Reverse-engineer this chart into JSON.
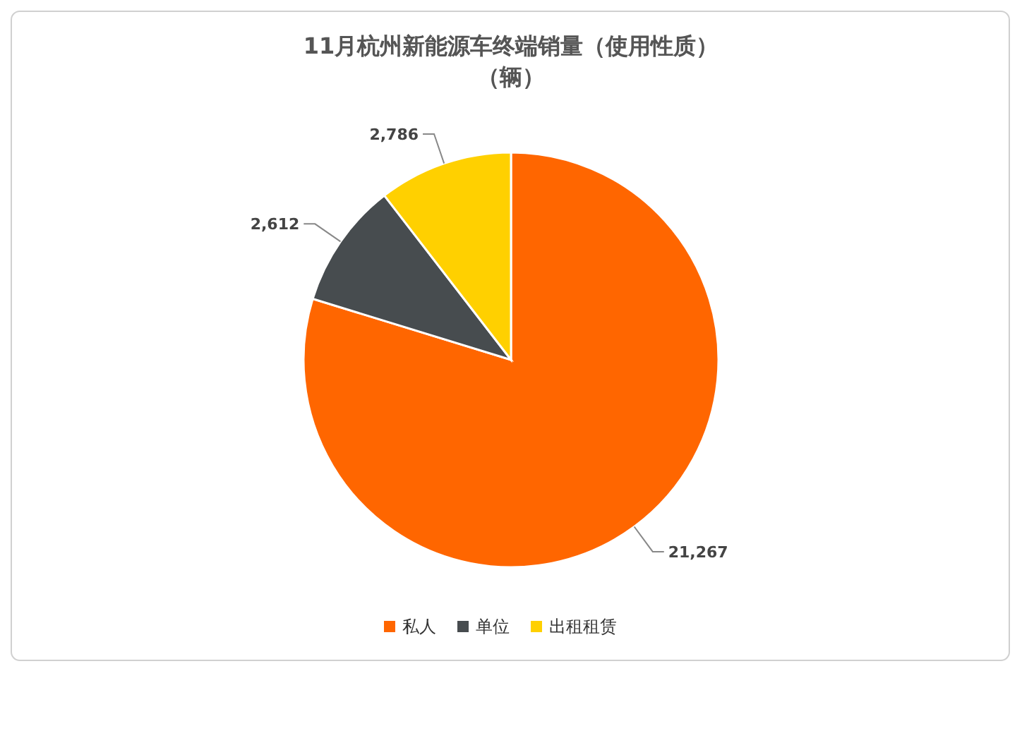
{
  "chart_data": {
    "type": "pie",
    "title": "11月杭州新能源车终端销量（使用性质）",
    "subtitle": "（辆）",
    "categories": [
      "私人",
      "单位",
      "出租租赁"
    ],
    "values": [
      21267,
      2612,
      2786
    ],
    "colors": [
      "#ff6600",
      "#474c4f",
      "#ffd000"
    ],
    "value_labels": [
      "21,267",
      "2,612",
      "2,786"
    ],
    "legend": "bottom"
  }
}
